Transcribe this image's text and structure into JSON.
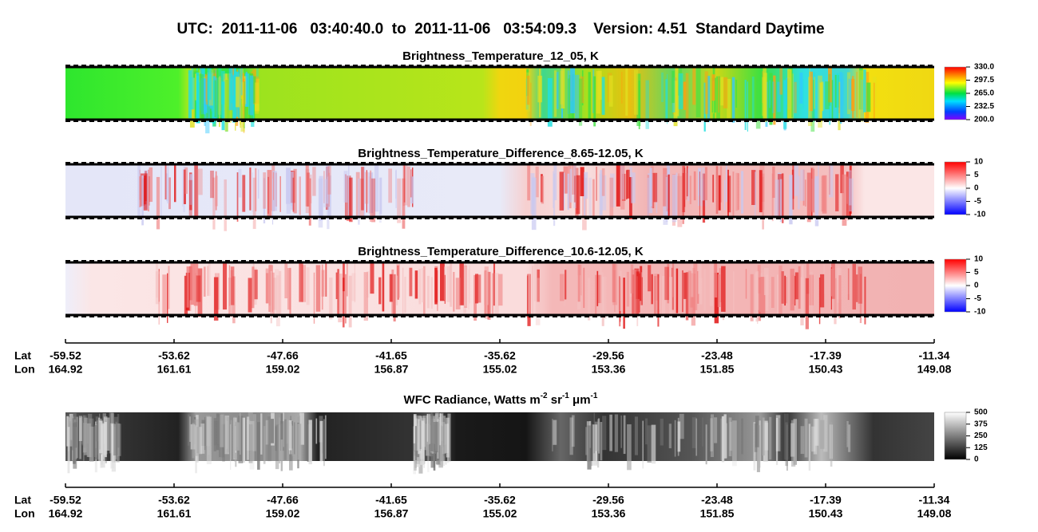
{
  "title": "UTC:  2011-11-06   03:40:40.0  to  2011-11-06   03:54:09.3    Version: 4.51  Standard Daytime",
  "panels": [
    {
      "title": "Brightness_Temperature_12_05, K",
      "colorbar_ticks": [
        "330.0",
        "297.5",
        "265.0",
        "232.5",
        "200.0"
      ]
    },
    {
      "title": "Brightness_Temperature_Difference_8.65-12.05, K",
      "colorbar_ticks": [
        "10",
        "5",
        "0",
        "-5",
        "-10"
      ]
    },
    {
      "title": "Brightness_Temperature_Difference_10.6-12.05, K",
      "colorbar_ticks": [
        "10",
        "5",
        "0",
        "-5",
        "-10"
      ]
    }
  ],
  "wfc_panel": {
    "title_parts": [
      "WFC Radiance, Watts m",
      "-2",
      " sr",
      "-1",
      " μm",
      "-1"
    ],
    "colorbar_ticks": [
      "500",
      "375",
      "250",
      "125",
      "0"
    ]
  },
  "axes": [
    {
      "lat_label": "Lat",
      "lon_label": "Lon",
      "lat": [
        "-59.52",
        "-53.62",
        "-47.66",
        "-41.65",
        "-35.62",
        "-29.56",
        "-23.48",
        "-17.39",
        "-11.34"
      ],
      "lon": [
        "164.92",
        "161.61",
        "159.02",
        "156.87",
        "155.02",
        "153.36",
        "151.85",
        "150.43",
        "149.08"
      ]
    },
    {
      "lat_label": "Lat",
      "lon_label": "Lon",
      "lat": [
        "-59.52",
        "-53.62",
        "-47.66",
        "-41.65",
        "-35.62",
        "-29.56",
        "-23.48",
        "-17.39",
        "-11.34"
      ],
      "lon": [
        "164.92",
        "161.61",
        "159.02",
        "156.87",
        "155.02",
        "153.36",
        "151.85",
        "150.43",
        "149.08"
      ]
    }
  ]
}
